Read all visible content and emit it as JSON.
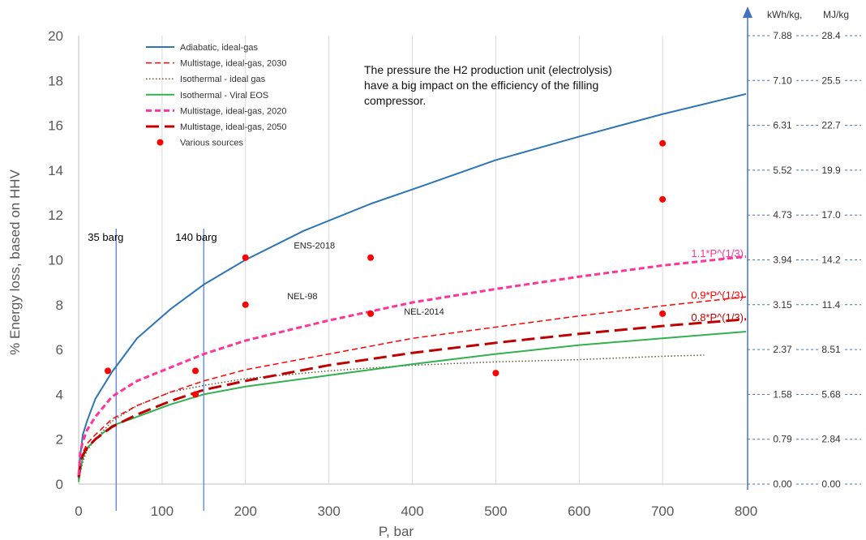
{
  "chart_data": {
    "type": "line",
    "xlabel": "P, bar",
    "ylabel": "% Energy loss, based on HHV",
    "xlim": [
      0,
      800
    ],
    "ylim": [
      0,
      20
    ],
    "x_ticks": [
      "0",
      "100",
      "200",
      "300",
      "400",
      "500",
      "600",
      "700",
      "800"
    ],
    "y_ticks": [
      "0",
      "2",
      "4",
      "6",
      "8",
      "10",
      "12",
      "14",
      "16",
      "18",
      "20"
    ],
    "right_axis": {
      "header_kwh": "kWh/kg,",
      "header_mj": "MJ/kg",
      "rows": [
        {
          "y": 0,
          "kwh": "0.00",
          "mj": "0.00"
        },
        {
          "y": 2,
          "kwh": "0.79",
          "mj": "2.84"
        },
        {
          "y": 4,
          "kwh": "1.58",
          "mj": "5.68"
        },
        {
          "y": 6,
          "kwh": "2.37",
          "mj": "8.51"
        },
        {
          "y": 8,
          "kwh": "3.15",
          "mj": "11.4"
        },
        {
          "y": 10,
          "kwh": "3.94",
          "mj": "14.2"
        },
        {
          "y": 12,
          "kwh": "4.73",
          "mj": "17.0"
        },
        {
          "y": 14,
          "kwh": "5.52",
          "mj": "19.9"
        },
        {
          "y": 16,
          "kwh": "6.31",
          "mj": "22.7"
        },
        {
          "y": 18,
          "kwh": "7.10",
          "mj": "25.5"
        },
        {
          "y": 20,
          "kwh": "7.88",
          "mj": "28.4"
        }
      ]
    },
    "series": [
      {
        "name": "Adiabatic, ideal-gas",
        "color": "#2E75B6",
        "style": "solid",
        "width": 2,
        "x": [
          0,
          2,
          5,
          10,
          20,
          40,
          70,
          110,
          150,
          200,
          270,
          350,
          420,
          500,
          600,
          700,
          800
        ],
        "y": [
          0.2,
          1.3,
          2.2,
          2.8,
          3.8,
          5.0,
          6.5,
          7.8,
          8.9,
          10.0,
          11.3,
          12.5,
          13.4,
          14.45,
          15.5,
          16.5,
          17.4
        ]
      },
      {
        "name": "Multistage, ideal-gas, 2030",
        "color": "#FF0000",
        "style": "dash",
        "width": 1.5,
        "x": [
          0,
          2,
          5,
          10,
          20,
          40,
          70,
          110,
          150,
          200,
          300,
          400,
          500,
          600,
          700,
          800
        ],
        "y": [
          0.3,
          0.9,
          1.4,
          1.8,
          2.2,
          2.9,
          3.5,
          4.1,
          4.6,
          5.1,
          5.8,
          6.5,
          7.0,
          7.5,
          7.95,
          8.35
        ]
      },
      {
        "name": "Isothermal - ideal gas",
        "color": "#665533",
        "style": "dot",
        "width": 1.5,
        "x": [
          0,
          2,
          5,
          10,
          20,
          40,
          70,
          110,
          150,
          200,
          300,
          400,
          500,
          600,
          700,
          750
        ],
        "y": [
          0.1,
          0.5,
          1.0,
          1.5,
          2.0,
          2.8,
          3.5,
          4.1,
          4.4,
          4.7,
          5.05,
          5.3,
          5.45,
          5.55,
          5.7,
          5.75
        ]
      },
      {
        "name": "Isothermal - Viral EOS",
        "color": "#33B050",
        "style": "solid",
        "width": 2,
        "x": [
          0,
          2,
          5,
          10,
          20,
          40,
          70,
          110,
          150,
          200,
          300,
          400,
          500,
          600,
          700,
          800
        ],
        "y": [
          0.1,
          0.6,
          1.2,
          1.6,
          2.0,
          2.6,
          3.0,
          3.55,
          4.0,
          4.35,
          4.85,
          5.35,
          5.8,
          6.2,
          6.5,
          6.8
        ]
      },
      {
        "name": "Multistage, ideal-gas, 2020",
        "color": "#FF3399",
        "style": "dash",
        "width": 3,
        "x": [
          0,
          2,
          5,
          10,
          20,
          40,
          70,
          110,
          150,
          200,
          300,
          400,
          500,
          600,
          700,
          800
        ],
        "y": [
          0.4,
          1.4,
          1.9,
          2.4,
          3.0,
          3.9,
          4.6,
          5.2,
          5.8,
          6.4,
          7.3,
          8.1,
          8.7,
          9.25,
          9.75,
          10.15
        ]
      },
      {
        "name": "Multistage, ideal-gas, 2050",
        "color": "#C00000",
        "style": "longdash",
        "width": 3,
        "x": [
          0,
          2,
          5,
          10,
          20,
          40,
          70,
          110,
          150,
          200,
          300,
          400,
          500,
          600,
          700,
          800
        ],
        "y": [
          0.3,
          0.9,
          1.3,
          1.6,
          2.0,
          2.55,
          3.1,
          3.7,
          4.2,
          4.6,
          5.3,
          5.85,
          6.3,
          6.7,
          7.05,
          7.35
        ]
      }
    ],
    "scatter": {
      "name": "Various sources",
      "color": "#FF0000",
      "points": [
        {
          "x": 35,
          "y": 5.05
        },
        {
          "x": 140,
          "y": 5.05
        },
        {
          "x": 140,
          "y": 4.0
        },
        {
          "x": 200,
          "y": 10.1
        },
        {
          "x": 200,
          "y": 8.0
        },
        {
          "x": 350,
          "y": 10.1
        },
        {
          "x": 350,
          "y": 7.6
        },
        {
          "x": 500,
          "y": 4.95
        },
        {
          "x": 700,
          "y": 15.2
        },
        {
          "x": 700,
          "y": 12.7
        },
        {
          "x": 700,
          "y": 7.6
        }
      ]
    },
    "vertical_markers": [
      {
        "x": 45,
        "label": "35 barg"
      },
      {
        "x": 150,
        "label": "140 barg"
      }
    ],
    "source_labels": [
      {
        "text": "ENS-2018",
        "x": 258,
        "y": 10.5
      },
      {
        "text": "NEL-98",
        "x": 250,
        "y": 8.25
      },
      {
        "text": "NEL-2014",
        "x": 390,
        "y": 7.55
      }
    ],
    "curve_labels": [
      {
        "text": "1.1*P^(1/3)",
        "color": "#FF3399",
        "x": 800,
        "y": 10.3
      },
      {
        "text": "0.9*P^(1/3)",
        "color": "#FF0000",
        "x": 800,
        "y": 8.45
      },
      {
        "text": "0.8*P^(1/3)",
        "color": "#C00000",
        "x": 800,
        "y": 7.45
      }
    ],
    "annotation": [
      "The pressure the H2 production unit (electrolysis)",
      "have a big impact on the efficiency of the filling",
      "compressor."
    ],
    "grid": "vertical",
    "legend_position": "top-left"
  }
}
